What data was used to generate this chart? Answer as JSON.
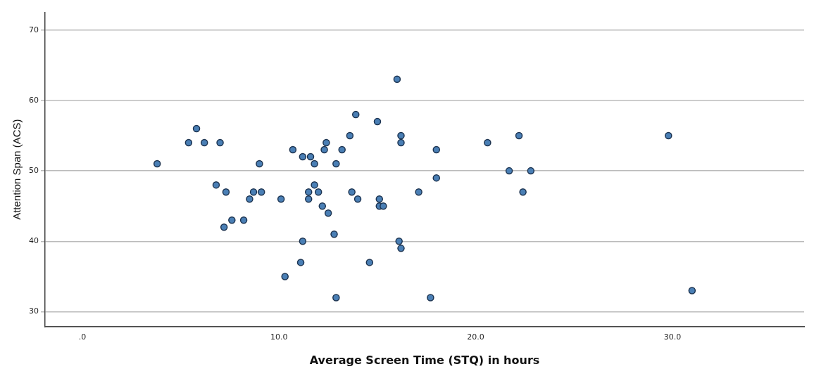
{
  "chart_data": {
    "type": "scatter",
    "xlabel": "Average Screen Time (STQ) in hours",
    "ylabel": "Attention Span (ACS)",
    "xlim": [
      -1.9,
      36.7
    ],
    "ylim": [
      27.9,
      72.5
    ],
    "xticks": [
      {
        "value": 0,
        "label": ".0"
      },
      {
        "value": 10,
        "label": "10.0"
      },
      {
        "value": 20,
        "label": "20.0"
      },
      {
        "value": 30,
        "label": "30.0"
      }
    ],
    "yticks": [
      30,
      40,
      50,
      60,
      70
    ],
    "grid": "y",
    "marker": "circle",
    "legend": false,
    "series": [
      {
        "color": "#4a7fb5",
        "x": [
          3.8,
          5.4,
          5.8,
          6.2,
          7.0,
          6.8,
          7.3,
          7.2,
          7.6,
          8.2,
          8.5,
          8.7,
          9.0,
          9.1,
          10.1,
          10.3,
          10.7,
          11.1,
          11.2,
          11.2,
          11.5,
          11.5,
          11.6,
          11.8,
          11.8,
          12.0,
          12.2,
          12.3,
          12.4,
          12.5,
          12.8,
          12.9,
          12.9,
          13.2,
          13.6,
          13.7,
          13.9,
          14.0,
          14.6,
          15.0,
          15.1,
          15.1,
          15.3,
          16.0,
          16.1,
          16.2,
          16.2,
          16.2,
          17.1,
          17.7,
          18.0,
          18.0,
          20.6,
          21.7,
          22.2,
          22.4,
          22.8,
          29.8,
          31.0
        ],
        "values": [
          51,
          54,
          56,
          54,
          54,
          48,
          47,
          42,
          43,
          43,
          46,
          47,
          51,
          47,
          46,
          35,
          53,
          37,
          52,
          40,
          47,
          46,
          52,
          48,
          51,
          47,
          45,
          53,
          54,
          44,
          41,
          51,
          32,
          53,
          55,
          47,
          58,
          46,
          37,
          57,
          46,
          45,
          45,
          63,
          40,
          55,
          54,
          39,
          47,
          32,
          53,
          49,
          54,
          50,
          55,
          47,
          50,
          55,
          33
        ]
      }
    ]
  }
}
